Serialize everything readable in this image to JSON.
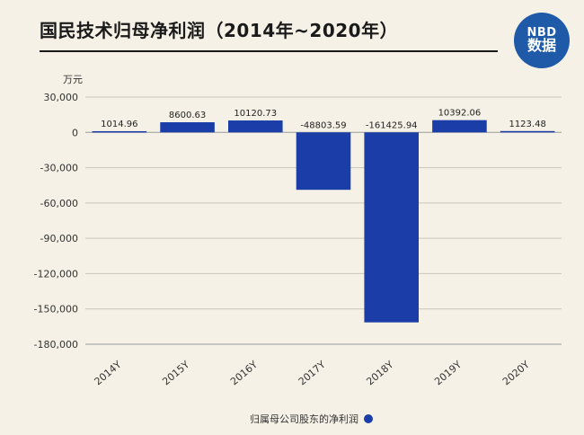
{
  "header": {
    "title": "国民技术归母净利润（2014年~2020年）",
    "logo_line1": "NBD",
    "logo_line2": "数据"
  },
  "chart_data": {
    "type": "bar",
    "unit": "万元",
    "categories": [
      "2014Y",
      "2015Y",
      "2016Y",
      "2017Y",
      "2018Y",
      "2019Y",
      "2020Y"
    ],
    "series": [
      {
        "name": "归属母公司股东的净利润",
        "values": [
          1014.96,
          8600.63,
          10120.73,
          -48803.59,
          -161425.94,
          10392.06,
          1123.48
        ],
        "labels": [
          "1014.96",
          "8600.63",
          "10120.73",
          "-48803.59",
          "-161425.94",
          "10392.06",
          "1123.48"
        ]
      }
    ],
    "ylim": [
      -180000,
      30000
    ],
    "yticks": [
      30000,
      0,
      -30000,
      -60000,
      -90000,
      -120000,
      -150000,
      -180000
    ],
    "ytick_labels": [
      "30,000",
      "0",
      "-30,000",
      "-60,000",
      "-90,000",
      "-120,000",
      "-150,000",
      "-180,000"
    ],
    "grid": true,
    "legend_position": "bottom",
    "bar_color": "#1a3da8"
  }
}
